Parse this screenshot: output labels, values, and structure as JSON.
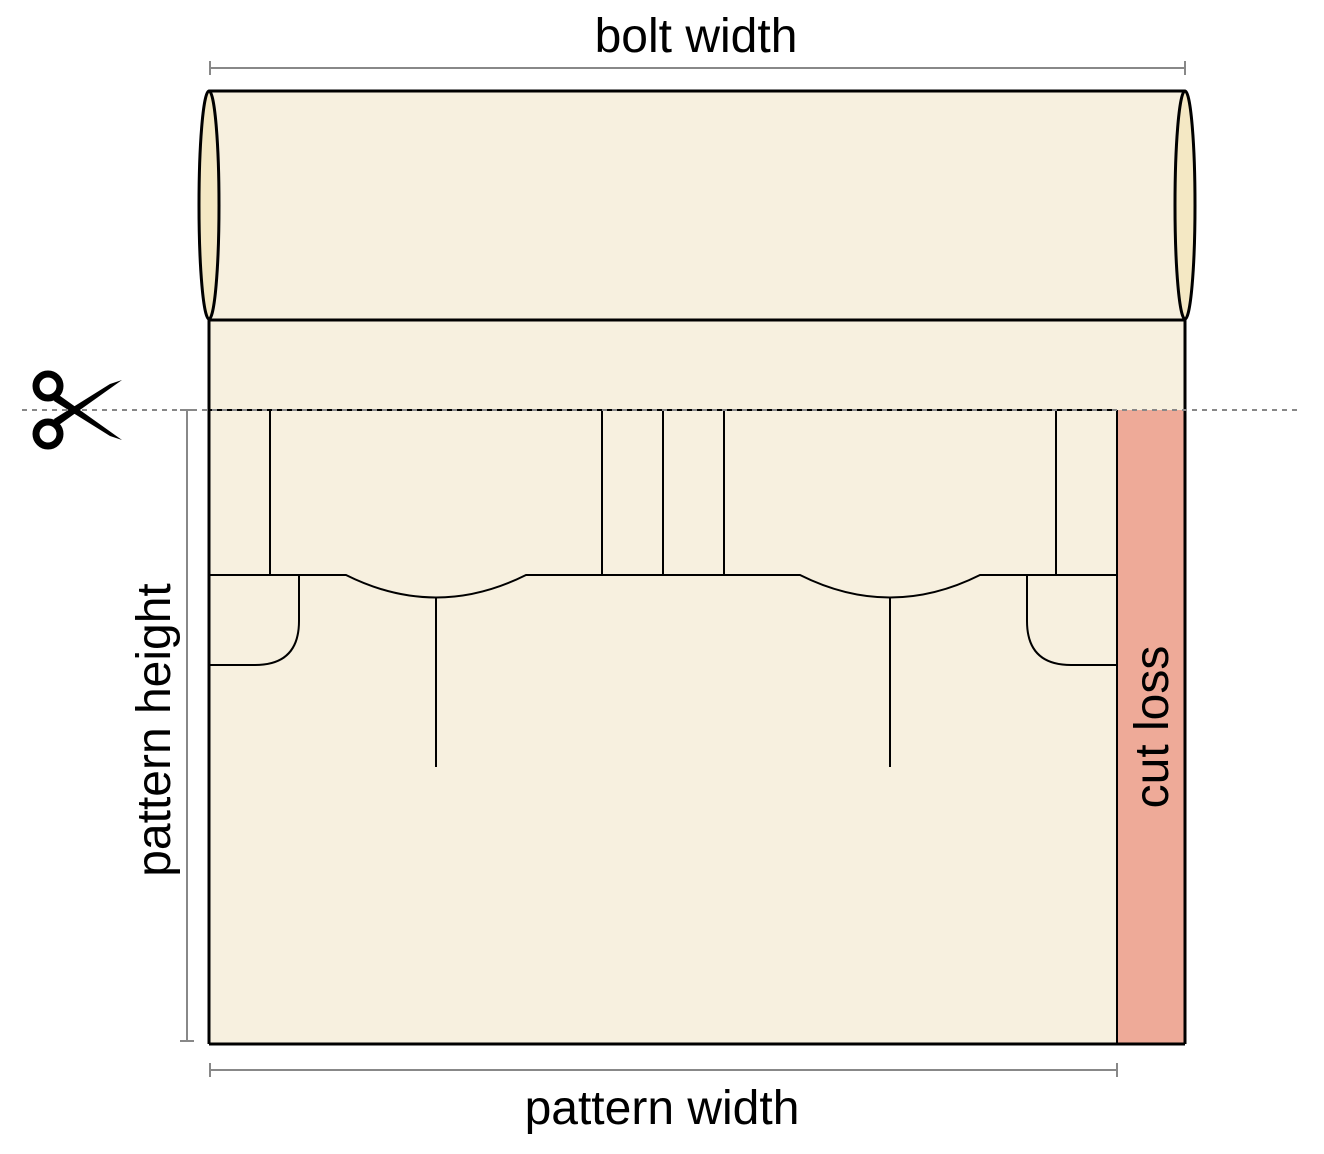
{
  "labels": {
    "bolt_width": "bolt width",
    "pattern_width": "pattern width",
    "pattern_height": "pattern height",
    "cut_loss": "cut loss"
  },
  "icons": {
    "cut_marker": "scissors-icon"
  },
  "colors": {
    "fabric": "#f7f0df",
    "roll_end": "#f4e8c4",
    "cut_loss": "#eeaa98",
    "outline": "#000000",
    "dimension_line": "#888888",
    "cut_line": "#888888"
  }
}
